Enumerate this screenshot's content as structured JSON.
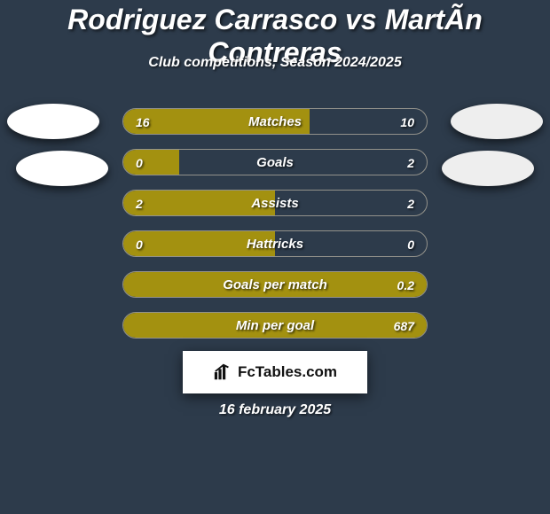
{
  "background_color": "#2d3b4b",
  "text_color": "#ffffff",
  "title": "Rodriguez Carrasco vs MartÃ­n Contreras",
  "subtitle": "Club competitions, Season 2024/2025",
  "date": "16 february 2025",
  "left_color": "#a39110",
  "right_color": "#2d3b4b",
  "row_bg_color": "#2d3b4b",
  "border_color": "#93928b",
  "avatar_left_color": "#ffffff",
  "avatar_right_color": "#eeeeee",
  "brand": {
    "label": "FcTables.com"
  },
  "stats": [
    {
      "label": "Matches",
      "left_value": "16",
      "right_value": "10",
      "left_ratio": 0.615,
      "right_ratio": 0.385,
      "show_right_fill": false
    },
    {
      "label": "Goals",
      "left_value": "0",
      "right_value": "2",
      "left_ratio": 0.185,
      "right_ratio": 0.815,
      "show_right_fill": false
    },
    {
      "label": "Assists",
      "left_value": "2",
      "right_value": "2",
      "left_ratio": 0.5,
      "right_ratio": 0.5,
      "show_right_fill": false
    },
    {
      "label": "Hattricks",
      "left_value": "0",
      "right_value": "0",
      "left_ratio": 0.5,
      "right_ratio": 0.5,
      "show_right_fill": false
    },
    {
      "label": "Goals per match",
      "left_value": "",
      "right_value": "0.2",
      "left_ratio": 1.0,
      "right_ratio": 0.0,
      "show_right_fill": false
    },
    {
      "label": "Min per goal",
      "left_value": "",
      "right_value": "687",
      "left_ratio": 1.0,
      "right_ratio": 0.0,
      "show_right_fill": false
    }
  ]
}
